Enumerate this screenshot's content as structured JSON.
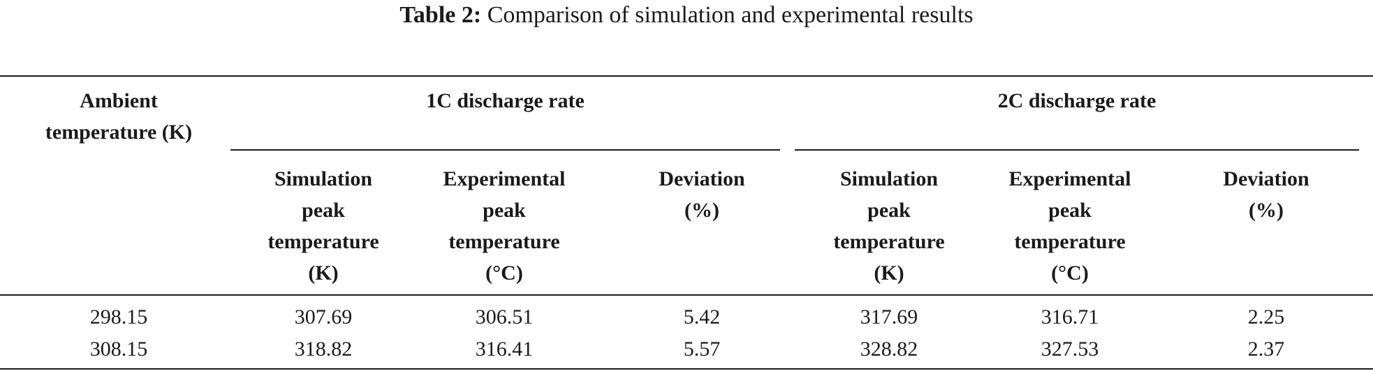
{
  "caption": {
    "label": "Table 2:",
    "text": "Comparison of simulation and experimental results"
  },
  "header": {
    "ambient": [
      "Ambient",
      "temperature (K)"
    ],
    "group1": "1C discharge rate",
    "group2": "2C discharge rate",
    "sim_peak": [
      "Simulation",
      "peak",
      "temperature",
      "(K)"
    ],
    "exp_peak": [
      "Experimental",
      "peak",
      "temperature",
      "(°C)"
    ],
    "deviation": [
      "Deviation",
      "(%)"
    ]
  },
  "rows": [
    [
      "298.15",
      "307.69",
      "306.51",
      "5.42",
      "317.69",
      "316.71",
      "2.25"
    ],
    [
      "308.15",
      "318.82",
      "316.41",
      "5.57",
      "328.82",
      "327.53",
      "2.37"
    ]
  ]
}
